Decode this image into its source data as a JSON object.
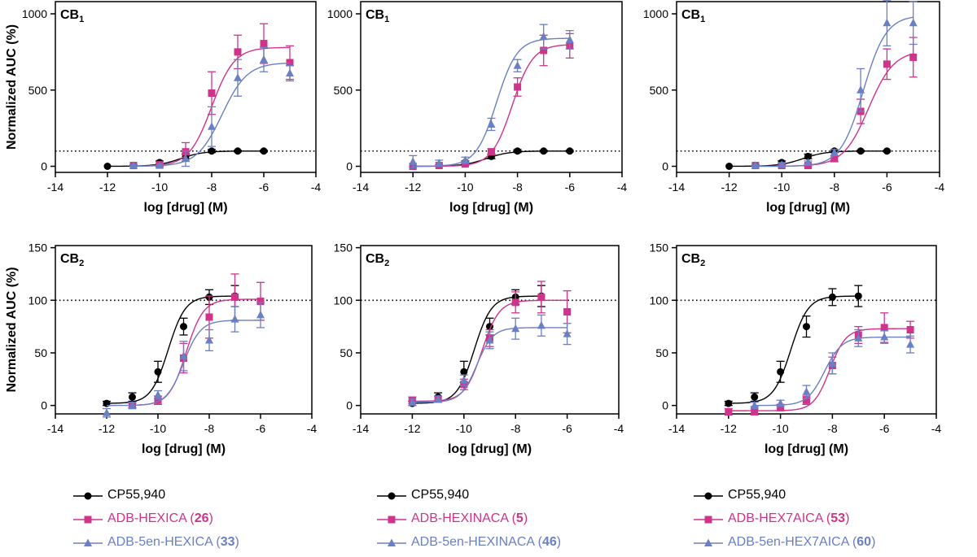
{
  "chart_data": [
    {
      "type": "line",
      "id": "cb1-hexica",
      "panel_label": "CB",
      "panel_label_sub": "1",
      "xlabel": "log [drug] (M)",
      "ylabel": "Normalized  AUC (%)",
      "xlim": [
        -14,
        -4
      ],
      "ylim": [
        -40,
        1080
      ],
      "xticks": [
        "-14",
        "-12",
        "-10",
        "-8",
        "-6",
        "-4"
      ],
      "yticks": [
        "0",
        "500",
        "1000"
      ],
      "reference_line": 100,
      "series": [
        {
          "name": "CP55,940",
          "color": "#000000",
          "marker": "circle",
          "x": [
            -12,
            -11,
            -10,
            -9,
            -8,
            -7,
            -6
          ],
          "y": [
            0,
            5,
            25,
            65,
            100,
            100,
            100
          ],
          "err": [
            0,
            0,
            10,
            15,
            10,
            5,
            5
          ],
          "curve": {
            "bottom": 0,
            "top": 100,
            "logec50": -9.2,
            "hill": 1.0
          }
        },
        {
          "name": "ADB-HEXICA (26)",
          "color": "#d0338a",
          "marker": "square",
          "x": [
            -11,
            -10,
            -9,
            -8,
            -7,
            -6,
            -5
          ],
          "y": [
            5,
            10,
            95,
            480,
            750,
            805,
            680
          ],
          "err": [
            5,
            10,
            60,
            140,
            110,
            130,
            110
          ],
          "curve": {
            "bottom": 0,
            "top": 780,
            "logec50": -8.0,
            "hill": 1.0
          }
        },
        {
          "name": "ADB-5en-HEXICA (33)",
          "color": "#6b7fc4",
          "marker": "triangle",
          "x": [
            -11,
            -10,
            -9,
            -8,
            -7,
            -6,
            -5
          ],
          "y": [
            5,
            5,
            50,
            260,
            580,
            700,
            610
          ],
          "err": [
            5,
            10,
            50,
            130,
            120,
            80,
            50
          ],
          "curve": {
            "bottom": 0,
            "top": 680,
            "logec50": -7.6,
            "hill": 0.9
          }
        }
      ]
    },
    {
      "type": "line",
      "id": "cb1-hexinaca",
      "panel_label": "CB",
      "panel_label_sub": "1",
      "xlabel": "log [drug] (M)",
      "ylabel": "",
      "xlim": [
        -14,
        -4
      ],
      "ylim": [
        -40,
        1080
      ],
      "xticks": [
        "-14",
        "-12",
        "-10",
        "-8",
        "-6",
        "-4"
      ],
      "yticks": [
        "0",
        "500",
        "1000"
      ],
      "reference_line": 100,
      "series": [
        {
          "name": "CP55,940",
          "color": "#000000",
          "marker": "circle",
          "x": [
            -12,
            -11,
            -10,
            -9,
            -8,
            -7,
            -6
          ],
          "y": [
            0,
            5,
            25,
            65,
            100,
            100,
            100
          ],
          "err": [
            0,
            0,
            10,
            15,
            10,
            5,
            5
          ],
          "curve": {
            "bottom": 0,
            "top": 100,
            "logec50": -9.2,
            "hill": 1.0
          }
        },
        {
          "name": "ADB-HEXINACA (5)",
          "color": "#d0338a",
          "marker": "square",
          "x": [
            -12,
            -11,
            -10,
            -9,
            -8,
            -7,
            -6
          ],
          "y": [
            0,
            5,
            15,
            95,
            520,
            760,
            790
          ],
          "err": [
            0,
            5,
            10,
            20,
            60,
            100,
            80
          ],
          "curve": {
            "bottom": 0,
            "top": 800,
            "logec50": -8.2,
            "hill": 1.1
          }
        },
        {
          "name": "ADB-5en-HEXINACA (46)",
          "color": "#6b7fc4",
          "marker": "triangle",
          "x": [
            -12,
            -11,
            -10,
            -9,
            -8,
            -7,
            -6
          ],
          "y": [
            30,
            20,
            40,
            275,
            660,
            850,
            830
          ],
          "err": [
            40,
            20,
            20,
            40,
            40,
            80,
            60
          ],
          "curve": {
            "bottom": 0,
            "top": 840,
            "logec50": -8.8,
            "hill": 1.1
          }
        }
      ]
    },
    {
      "type": "line",
      "id": "cb1-hex7aica",
      "panel_label": "CB",
      "panel_label_sub": "1",
      "xlabel": "log [drug] (M)",
      "ylabel": "",
      "xlim": [
        -14,
        -4
      ],
      "ylim": [
        -40,
        1080
      ],
      "xticks": [
        "-14",
        "-12",
        "-10",
        "-8",
        "-6",
        "-4"
      ],
      "yticks": [
        "0",
        "500",
        "1000"
      ],
      "reference_line": 100,
      "series": [
        {
          "name": "CP55,940",
          "color": "#000000",
          "marker": "circle",
          "x": [
            -12,
            -11,
            -10,
            -9,
            -8,
            -7,
            -6
          ],
          "y": [
            0,
            5,
            25,
            65,
            100,
            100,
            100
          ],
          "err": [
            0,
            0,
            10,
            15,
            10,
            5,
            5
          ],
          "curve": {
            "bottom": 0,
            "top": 100,
            "logec50": -9.2,
            "hill": 1.0
          }
        },
        {
          "name": "ADB-HEX7AICA (53)",
          "color": "#d0338a",
          "marker": "square",
          "x": [
            -11,
            -10,
            -9,
            -8,
            -7,
            -6,
            -5
          ],
          "y": [
            5,
            5,
            5,
            50,
            360,
            670,
            715
          ],
          "err": [
            5,
            5,
            5,
            20,
            80,
            100,
            130
          ],
          "curve": {
            "bottom": 0,
            "top": 760,
            "logec50": -6.7,
            "hill": 0.9
          }
        },
        {
          "name": "ADB-5en-HEX7AICA (60)",
          "color": "#6b7fc4",
          "marker": "triangle",
          "x": [
            -11,
            -10,
            -9,
            -8,
            -7,
            -6,
            -5
          ],
          "y": [
            5,
            10,
            25,
            90,
            500,
            940,
            940
          ],
          "err": [
            5,
            10,
            10,
            20,
            140,
            150,
            140
          ],
          "curve": {
            "bottom": 0,
            "top": 990,
            "logec50": -6.9,
            "hill": 1.0
          }
        }
      ]
    },
    {
      "type": "line",
      "id": "cb2-hexica",
      "panel_label": "CB",
      "panel_label_sub": "2",
      "xlabel": "log [drug] (M)",
      "ylabel": "Normalized  AUC (%)",
      "xlim": [
        -14,
        -4
      ],
      "ylim": [
        -8,
        152
      ],
      "xticks": [
        "-14",
        "-12",
        "-10",
        "-8",
        "-6",
        "-4"
      ],
      "yticks": [
        "0",
        "50",
        "100",
        "150"
      ],
      "reference_line": 100,
      "series": [
        {
          "name": "CP55,940",
          "color": "#000000",
          "marker": "circle",
          "x": [
            -12,
            -11,
            -10,
            -9,
            -8,
            -7
          ],
          "y": [
            2,
            8,
            32,
            75,
            103,
            104
          ],
          "err": [
            2,
            4,
            10,
            8,
            7,
            10
          ],
          "curve": {
            "bottom": 2,
            "top": 104,
            "logec50": -9.6,
            "hill": 1.3
          }
        },
        {
          "name": "ADB-HEXICA (26)",
          "color": "#d0338a",
          "marker": "square",
          "x": [
            -11,
            -10,
            -9,
            -8,
            -7,
            -6
          ],
          "y": [
            0,
            5,
            45,
            84,
            103,
            99
          ],
          "err": [
            2,
            4,
            14,
            20,
            22,
            18
          ],
          "curve": {
            "bottom": 0,
            "top": 101,
            "logec50": -8.9,
            "hill": 1.3
          }
        },
        {
          "name": "ADB-5en-HEXICA (33)",
          "color": "#6b7fc4",
          "marker": "triangle",
          "x": [
            -12,
            -11,
            -10,
            -9,
            -8,
            -7,
            -6
          ],
          "y": [
            -7,
            0,
            10,
            47,
            62,
            82,
            86
          ],
          "err": [
            4,
            3,
            4,
            14,
            10,
            12,
            12
          ],
          "curve": {
            "bottom": 0,
            "top": 81,
            "logec50": -9.0,
            "hill": 1.3
          }
        }
      ]
    },
    {
      "type": "line",
      "id": "cb2-hexinaca",
      "panel_label": "CB",
      "panel_label_sub": "2",
      "xlabel": "log [drug] (M)",
      "ylabel": "",
      "xlim": [
        -14,
        -4
      ],
      "ylim": [
        -8,
        152
      ],
      "xticks": [
        "-14",
        "-12",
        "-10",
        "-8",
        "-6",
        "-4"
      ],
      "yticks": [
        "0",
        "50",
        "100",
        "150"
      ],
      "reference_line": 100,
      "series": [
        {
          "name": "CP55,940",
          "color": "#000000",
          "marker": "circle",
          "x": [
            -12,
            -11,
            -10,
            -9,
            -8,
            -7
          ],
          "y": [
            2,
            8,
            32,
            75,
            103,
            104
          ],
          "err": [
            2,
            4,
            10,
            8,
            7,
            10
          ],
          "curve": {
            "bottom": 2,
            "top": 104,
            "logec50": -9.6,
            "hill": 1.3
          }
        },
        {
          "name": "ADB-HEXINACA (5)",
          "color": "#d0338a",
          "marker": "square",
          "x": [
            -12,
            -11,
            -10,
            -9,
            -8,
            -7,
            -6
          ],
          "y": [
            5,
            6,
            20,
            64,
            98,
            103,
            89
          ],
          "err": [
            3,
            3,
            5,
            8,
            10,
            15,
            20
          ],
          "curve": {
            "bottom": 4,
            "top": 100,
            "logec50": -9.3,
            "hill": 1.3
          }
        },
        {
          "name": "ADB-5en-HEXINACA (46)",
          "color": "#6b7fc4",
          "marker": "triangle",
          "x": [
            -12,
            -11,
            -10,
            -9,
            -8,
            -7,
            -6
          ],
          "y": [
            3,
            6,
            24,
            62,
            73,
            76,
            68
          ],
          "err": [
            3,
            3,
            5,
            8,
            10,
            10,
            10
          ],
          "curve": {
            "bottom": 3,
            "top": 74,
            "logec50": -9.5,
            "hill": 1.4
          }
        }
      ]
    },
    {
      "type": "line",
      "id": "cb2-hex7aica",
      "panel_label": "CB",
      "panel_label_sub": "2",
      "xlabel": "log [drug] (M)",
      "ylabel": "",
      "xlim": [
        -14,
        -4
      ],
      "ylim": [
        -8,
        152
      ],
      "xticks": [
        "-14",
        "-12",
        "-10",
        "-8",
        "-6",
        "-4"
      ],
      "yticks": [
        "0",
        "50",
        "100",
        "150"
      ],
      "reference_line": 100,
      "series": [
        {
          "name": "CP55,940",
          "color": "#000000",
          "marker": "circle",
          "x": [
            -12,
            -11,
            -10,
            -9,
            -8,
            -7
          ],
          "y": [
            2,
            8,
            32,
            75,
            103,
            104
          ],
          "err": [
            2,
            4,
            10,
            10,
            8,
            10
          ],
          "curve": {
            "bottom": 2,
            "top": 104,
            "logec50": -9.6,
            "hill": 1.3
          }
        },
        {
          "name": "ADB-HEX7AICA (53)",
          "color": "#d0338a",
          "marker": "square",
          "x": [
            -12,
            -11,
            -10,
            -9,
            -8,
            -7,
            -6,
            -5
          ],
          "y": [
            -6,
            -5,
            -2,
            5,
            38,
            67,
            74,
            72
          ],
          "err": [
            3,
            4,
            3,
            4,
            8,
            8,
            14,
            8
          ],
          "curve": {
            "bottom": -5,
            "top": 73,
            "logec50": -8.1,
            "hill": 1.4
          }
        },
        {
          "name": "ADB-5en-HEX7AICA (60)",
          "color": "#6b7fc4",
          "marker": "triangle",
          "x": [
            -11,
            -10,
            -9,
            -8,
            -7,
            -6,
            -5
          ],
          "y": [
            0,
            2,
            13,
            40,
            64,
            65,
            58
          ],
          "err": [
            3,
            3,
            6,
            10,
            8,
            6,
            8
          ],
          "curve": {
            "bottom": 0,
            "top": 65,
            "logec50": -8.3,
            "hill": 1.3
          }
        }
      ]
    }
  ],
  "legends": [
    {
      "entries": [
        {
          "label": "CP55,940",
          "number": "",
          "close": "",
          "color": "#000000",
          "num_color": "#000000",
          "marker": "circle"
        },
        {
          "label": "ADB-HEXICA (",
          "number": "26",
          "close": ")",
          "color": "#d0338a",
          "num_color": "#d0338a",
          "marker": "square"
        },
        {
          "label": "ADB-5en-HEXICA (",
          "number": "33",
          "close": ")",
          "color": "#6b7fc4",
          "num_color": "#6b7fc4",
          "marker": "triangle"
        }
      ]
    },
    {
      "entries": [
        {
          "label": "CP55,940",
          "number": "",
          "close": "",
          "color": "#000000",
          "num_color": "#000000",
          "marker": "circle"
        },
        {
          "label": "ADB-HEXINACA (",
          "number": "5",
          "close": ")",
          "color": "#d0338a",
          "num_color": "#d0338a",
          "marker": "square"
        },
        {
          "label": "ADB-5en-HEXINACA (",
          "number": "46",
          "close": ")",
          "color": "#6b7fc4",
          "num_color": "#6b7fc4",
          "marker": "triangle"
        }
      ]
    },
    {
      "entries": [
        {
          "label": "CP55,940",
          "number": "",
          "close": "",
          "color": "#000000",
          "num_color": "#000000",
          "marker": "circle"
        },
        {
          "label": "ADB-HEX7AICA (",
          "number": "53",
          "close": ")",
          "color": "#d0338a",
          "num_color": "#d0338a",
          "marker": "square"
        },
        {
          "label": "ADB-5en-HEX7AICA (",
          "number": "60",
          "close": ")",
          "color": "#6b7fc4",
          "num_color": "#6b7fc4",
          "marker": "triangle"
        }
      ]
    }
  ]
}
